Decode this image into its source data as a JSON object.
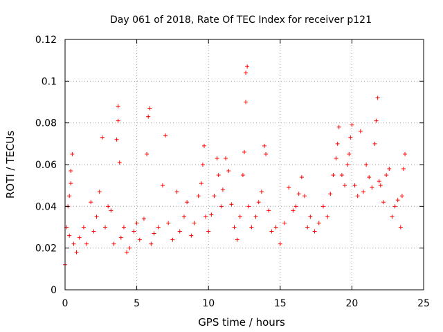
{
  "chart_data": {
    "type": "scatter",
    "title": "Day 061 of 2018, Rate Of TEC Index for receiver p121",
    "xlabel": "GPS time / hours",
    "ylabel": "ROTI / TECUs",
    "xlim": [
      0,
      25
    ],
    "ylim": [
      0,
      0.12
    ],
    "xticks": [
      "0",
      "5",
      "10",
      "15",
      "20",
      "25"
    ],
    "yticks": [
      "0",
      "0.02",
      "0.04",
      "0.06",
      "0.08",
      "0.1",
      "0.12"
    ],
    "grid": true,
    "marker": "+",
    "color": "#ff0000",
    "series": [
      {
        "x": [
          0.0,
          0.1,
          0.2,
          0.3,
          0.3,
          0.4,
          0.4,
          0.5,
          0.6,
          0.8,
          1.0,
          1.3,
          1.5,
          1.8,
          2.0,
          2.2,
          2.4,
          2.6,
          2.8,
          3.0,
          3.2,
          3.4,
          3.6,
          3.7,
          3.7,
          3.8,
          3.9,
          4.1,
          4.3,
          4.5,
          4.8,
          5.0,
          5.2,
          5.5,
          5.7,
          5.8,
          5.9,
          6.0,
          6.2,
          6.5,
          6.8,
          7.0,
          7.2,
          7.5,
          7.8,
          8.0,
          8.3,
          8.5,
          8.8,
          9.0,
          9.3,
          9.5,
          9.6,
          9.7,
          9.8,
          10.0,
          10.2,
          10.4,
          10.6,
          10.7,
          10.9,
          11.0,
          11.2,
          11.4,
          11.6,
          11.8,
          12.0,
          12.2,
          12.4,
          12.5,
          12.6,
          12.6,
          12.7,
          12.8,
          13.0,
          13.3,
          13.5,
          13.7,
          13.9,
          14.0,
          14.2,
          14.4,
          14.7,
          15.0,
          15.3,
          15.6,
          15.9,
          16.1,
          16.3,
          16.5,
          16.7,
          16.9,
          17.1,
          17.4,
          17.7,
          18.0,
          18.3,
          18.5,
          18.7,
          18.9,
          19.0,
          19.1,
          19.3,
          19.5,
          19.7,
          19.8,
          19.9,
          20.0,
          20.2,
          20.4,
          20.6,
          20.8,
          21.0,
          21.2,
          21.4,
          21.6,
          21.7,
          21.8,
          21.9,
          22.0,
          22.2,
          22.4,
          22.6,
          22.8,
          23.0,
          23.2,
          23.4,
          23.5,
          23.6,
          23.7
        ],
        "y": [
          0.012,
          0.03,
          0.04,
          0.026,
          0.045,
          0.051,
          0.057,
          0.065,
          0.022,
          0.018,
          0.025,
          0.03,
          0.022,
          0.042,
          0.028,
          0.035,
          0.047,
          0.073,
          0.03,
          0.04,
          0.038,
          0.022,
          0.072,
          0.081,
          0.088,
          0.061,
          0.025,
          0.03,
          0.018,
          0.02,
          0.028,
          0.032,
          0.024,
          0.034,
          0.065,
          0.083,
          0.087,
          0.022,
          0.027,
          0.03,
          0.05,
          0.074,
          0.032,
          0.024,
          0.047,
          0.028,
          0.035,
          0.042,
          0.026,
          0.032,
          0.045,
          0.051,
          0.06,
          0.069,
          0.035,
          0.028,
          0.036,
          0.045,
          0.063,
          0.055,
          0.04,
          0.048,
          0.063,
          0.057,
          0.041,
          0.03,
          0.024,
          0.035,
          0.055,
          0.066,
          0.09,
          0.104,
          0.107,
          0.04,
          0.03,
          0.035,
          0.042,
          0.047,
          0.069,
          0.065,
          0.038,
          0.028,
          0.03,
          0.022,
          0.032,
          0.049,
          0.038,
          0.04,
          0.046,
          0.054,
          0.045,
          0.03,
          0.035,
          0.028,
          0.032,
          0.04,
          0.035,
          0.046,
          0.055,
          0.063,
          0.07,
          0.078,
          0.055,
          0.05,
          0.06,
          0.065,
          0.073,
          0.079,
          0.05,
          0.045,
          0.076,
          0.047,
          0.06,
          0.054,
          0.049,
          0.07,
          0.081,
          0.092,
          0.052,
          0.05,
          0.042,
          0.055,
          0.058,
          0.035,
          0.04,
          0.043,
          0.03,
          0.045,
          0.058,
          0.065
        ]
      }
    ]
  }
}
